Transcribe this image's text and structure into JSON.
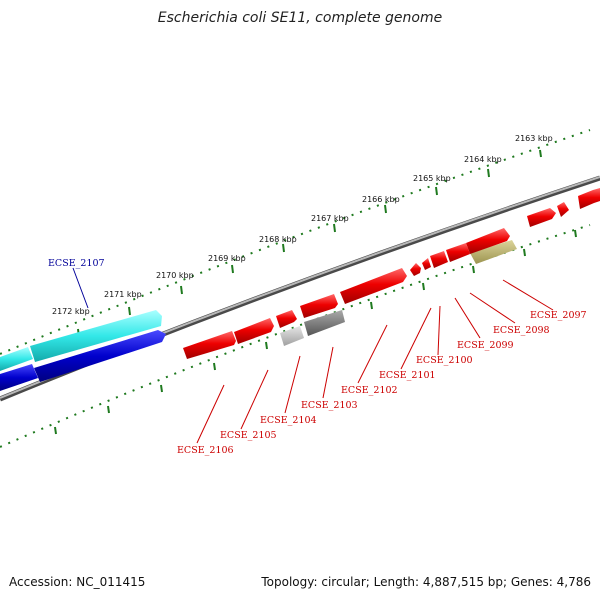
{
  "title": "Escherichia coli SE11, complete genome",
  "footer": {
    "accession": "Accession: NC_011415",
    "info": "Topology: circular; Length: 4,887,515 bp; Genes: 4,786"
  },
  "ruler_labels": [
    "2163 kbp",
    "2164 kbp",
    "2165 kbp",
    "2166 kbp",
    "2167 kbp",
    "2168 kbp",
    "2169 kbp",
    "2170 kbp",
    "2171 kbp",
    "2172 kbp"
  ],
  "gene_labels": [
    {
      "name": "ECSE_2097",
      "color": "#cc0000"
    },
    {
      "name": "ECSE_2098",
      "color": "#cc0000"
    },
    {
      "name": "ECSE_2099",
      "color": "#cc0000"
    },
    {
      "name": "ECSE_2100",
      "color": "#cc0000"
    },
    {
      "name": "ECSE_2101",
      "color": "#cc0000"
    },
    {
      "name": "ECSE_2102",
      "color": "#cc0000"
    },
    {
      "name": "ECSE_2103",
      "color": "#cc0000"
    },
    {
      "name": "ECSE_2104",
      "color": "#cc0000"
    },
    {
      "name": "ECSE_2105",
      "color": "#cc0000"
    },
    {
      "name": "ECSE_2106",
      "color": "#cc0000"
    },
    {
      "name": "ECSE_2107",
      "color": "#000099"
    }
  ],
  "colors": {
    "forward_gene": "#ee0000",
    "pseudo_gene": "#999999",
    "rna_gene": "#b8b070",
    "reverse_gene_top": "#33e8e8",
    "reverse_gene_bottom": "#0000cc",
    "ruler": "#1f7a1f",
    "backbone": "#888888"
  }
}
